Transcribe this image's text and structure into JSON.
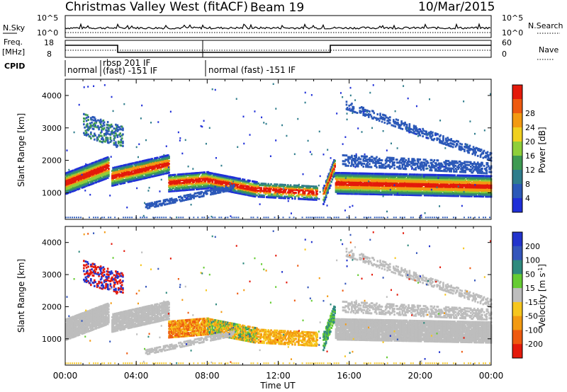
{
  "header": {
    "station": "Christmas Valley West (fitACF)",
    "beam": "Beam 19",
    "date": "10/Mar/2015"
  },
  "noise_panel": {
    "left_label": "N.Sky",
    "right_label": "N.Search",
    "left_ticks": [
      "10^5",
      "10^0"
    ],
    "right_ticks": [
      "10^5",
      "10^0"
    ]
  },
  "freq_panel": {
    "left_label_1": "Freq.",
    "left_label_2": "[MHz]",
    "right_label": "Nave",
    "left_ticks": [
      "18",
      "8"
    ],
    "right_ticks": [
      "60",
      "0"
    ]
  },
  "cpid_panel": {
    "label": "CPID",
    "segments": [
      "normal",
      "rbsp 201 IF",
      "(fast) -151 IF",
      "normal (fast) -151 IF"
    ]
  },
  "chart_data": [
    {
      "type": "heatmap",
      "name": "power",
      "ylabel": "Slant Range [km]",
      "xlabel": "Time UT",
      "x_ticks": [
        "00:00",
        "04:00",
        "08:00",
        "12:00",
        "16:00",
        "20:00",
        "00:00"
      ],
      "y_ticks": [
        1000,
        2000,
        3000,
        4000
      ],
      "ylim": [
        180,
        4500
      ],
      "xlim_hours": [
        0,
        24
      ],
      "colorbar": {
        "label": "Power [dB]",
        "ticks": [
          "4",
          "8",
          "12",
          "16",
          "20",
          "24",
          "28"
        ],
        "colors": [
          "#1f2fd8",
          "#2b58b8",
          "#2f7d8c",
          "#3e9a52",
          "#8fcf3a",
          "#f0d020",
          "#f39a12",
          "#ee5a10",
          "#e41a0b"
        ]
      }
    },
    {
      "type": "heatmap",
      "name": "velocity",
      "ylabel": "Slant Range [km]",
      "xlabel": "Time UT",
      "x_ticks": [
        "00:00",
        "04:00",
        "08:00",
        "12:00",
        "16:00",
        "20:00",
        "00:00"
      ],
      "y_ticks": [
        1000,
        2000,
        3000,
        4000
      ],
      "ylim": [
        180,
        4500
      ],
      "xlim_hours": [
        0,
        24
      ],
      "colorbar": {
        "label": "Velocity [m s^-1]",
        "ticks": [
          "200",
          "100",
          "50",
          "15",
          "-15",
          "-50",
          "-100",
          "-200"
        ],
        "colors": [
          "#2233cc",
          "#3355bb",
          "#2f8a7e",
          "#66cc33",
          "#bdbdbd",
          "#f6c61e",
          "#f39a12",
          "#ee5a10",
          "#e41a0b"
        ]
      }
    }
  ]
}
